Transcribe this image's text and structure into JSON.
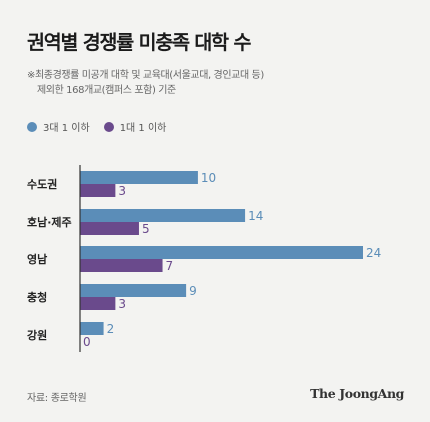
{
  "title": "권역별 경쟁률 미충족 대학 수",
  "note_line1": "※최종경쟁률 미공개 대학 및 교육대(서울교대, 경인교대 등)",
  "note_line2": "제외한 168개교(캠퍼스 포함) 기준",
  "source": "자료: 종로학원",
  "brand": "The JoongAng",
  "colors": {
    "series1": "#5b8db8",
    "series2": "#6a4a8c",
    "axis": "#333333",
    "background": "#f3f3f1"
  },
  "chart_data": {
    "type": "bar",
    "orientation": "horizontal",
    "categories": [
      "수도권",
      "호남·제주",
      "영남",
      "충청",
      "강원"
    ],
    "series": [
      {
        "name": "3대 1 이하",
        "values": [
          10,
          14,
          24,
          9,
          2
        ]
      },
      {
        "name": "1대 1 이하",
        "values": [
          3,
          5,
          7,
          3,
          0
        ]
      }
    ],
    "xlim": [
      0,
      24
    ],
    "grid": false,
    "legend_position": "top-left"
  }
}
